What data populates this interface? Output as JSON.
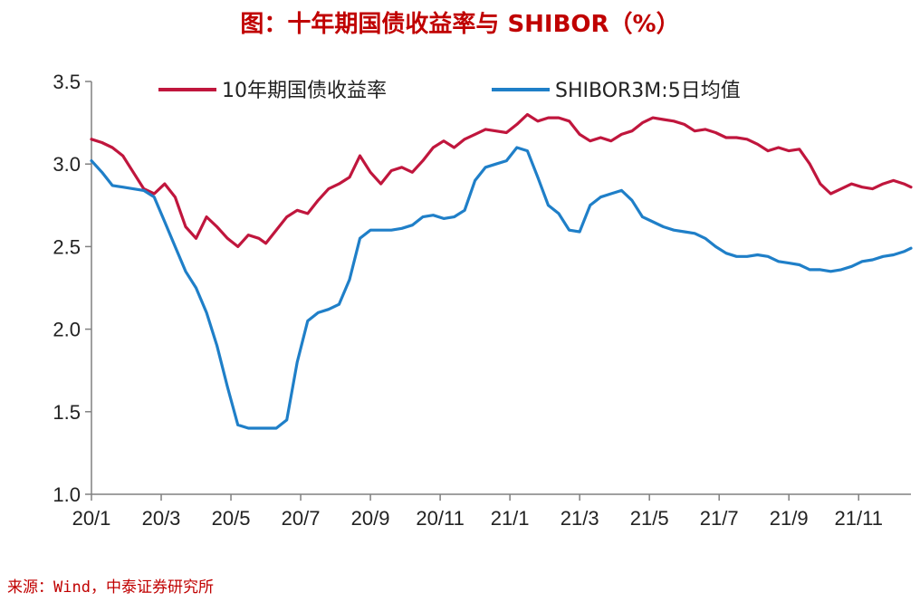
{
  "title": "图：十年期国债收益率与 SHIBOR（%）",
  "source": "来源：Wind，中泰证券研究所",
  "colors": {
    "title": "#C00000",
    "series1": "#C0163D",
    "series2": "#1F7FC8",
    "axis": "#808080"
  },
  "chart_data": {
    "type": "line",
    "title": "图：十年期国债收益率与 SHIBOR（%）",
    "xlabel": "",
    "ylabel": "",
    "x_ticks": [
      "20/1",
      "20/3",
      "20/5",
      "20/7",
      "20/9",
      "20/11",
      "21/1",
      "21/3",
      "21/5",
      "21/7",
      "21/9",
      "21/11"
    ],
    "x_range": [
      0,
      23.5
    ],
    "ylim": [
      1.0,
      3.5
    ],
    "y_ticks": [
      "1.0",
      "1.5",
      "2.0",
      "2.5",
      "3.0",
      "3.5"
    ],
    "grid": false,
    "legend_position": "top",
    "series": [
      {
        "name": "10年期国债收益率",
        "x": [
          0,
          0.3,
          0.6,
          0.9,
          1.2,
          1.5,
          1.8,
          2.1,
          2.4,
          2.7,
          3.0,
          3.3,
          3.6,
          3.9,
          4.2,
          4.5,
          4.8,
          5.0,
          5.3,
          5.6,
          5.9,
          6.2,
          6.5,
          6.8,
          7.1,
          7.4,
          7.7,
          8.0,
          8.3,
          8.6,
          8.9,
          9.2,
          9.5,
          9.8,
          10.1,
          10.4,
          10.7,
          11.0,
          11.3,
          11.6,
          11.9,
          12.2,
          12.5,
          12.8,
          13.1,
          13.4,
          13.7,
          14.0,
          14.3,
          14.6,
          14.9,
          15.2,
          15.5,
          15.8,
          16.1,
          16.4,
          16.7,
          17.0,
          17.3,
          17.6,
          17.9,
          18.2,
          18.5,
          18.8,
          19.1,
          19.4,
          19.7,
          20.0,
          20.3,
          20.6,
          20.9,
          21.2,
          21.5,
          21.8,
          22.1,
          22.4,
          22.7,
          23.0,
          23.3,
          23.5
        ],
        "y": [
          3.15,
          3.13,
          3.1,
          3.05,
          2.95,
          2.85,
          2.82,
          2.88,
          2.8,
          2.62,
          2.55,
          2.68,
          2.62,
          2.55,
          2.5,
          2.57,
          2.55,
          2.52,
          2.6,
          2.68,
          2.72,
          2.7,
          2.78,
          2.85,
          2.88,
          2.92,
          3.05,
          2.95,
          2.88,
          2.96,
          2.98,
          2.95,
          3.02,
          3.1,
          3.14,
          3.1,
          3.15,
          3.18,
          3.21,
          3.2,
          3.19,
          3.24,
          3.3,
          3.26,
          3.28,
          3.28,
          3.26,
          3.18,
          3.14,
          3.16,
          3.14,
          3.18,
          3.2,
          3.25,
          3.28,
          3.27,
          3.26,
          3.24,
          3.2,
          3.21,
          3.19,
          3.16,
          3.16,
          3.15,
          3.12,
          3.08,
          3.1,
          3.08,
          3.09,
          3.0,
          2.88,
          2.82,
          2.85,
          2.88,
          2.86,
          2.85,
          2.88,
          2.9,
          2.88,
          2.86
        ]
      },
      {
        "name": "SHIBOR3M:5日均值",
        "x": [
          0,
          0.3,
          0.6,
          0.9,
          1.2,
          1.5,
          1.8,
          2.1,
          2.4,
          2.7,
          3.0,
          3.3,
          3.6,
          3.9,
          4.2,
          4.5,
          4.8,
          5.0,
          5.3,
          5.6,
          5.9,
          6.2,
          6.5,
          6.8,
          7.1,
          7.4,
          7.7,
          8.0,
          8.3,
          8.6,
          8.9,
          9.2,
          9.5,
          9.8,
          10.1,
          10.4,
          10.7,
          11.0,
          11.3,
          11.6,
          11.9,
          12.2,
          12.5,
          12.8,
          13.1,
          13.4,
          13.7,
          14.0,
          14.3,
          14.6,
          14.9,
          15.2,
          15.5,
          15.8,
          16.1,
          16.4,
          16.7,
          17.0,
          17.3,
          17.6,
          17.9,
          18.2,
          18.5,
          18.8,
          19.1,
          19.4,
          19.7,
          20.0,
          20.3,
          20.6,
          20.9,
          21.2,
          21.5,
          21.8,
          22.1,
          22.4,
          22.7,
          23.0,
          23.3,
          23.5
        ],
        "y": [
          3.02,
          2.95,
          2.87,
          2.86,
          2.85,
          2.84,
          2.8,
          2.65,
          2.5,
          2.35,
          2.25,
          2.1,
          1.9,
          1.65,
          1.42,
          1.4,
          1.4,
          1.4,
          1.4,
          1.45,
          1.8,
          2.05,
          2.1,
          2.12,
          2.15,
          2.3,
          2.55,
          2.6,
          2.6,
          2.6,
          2.61,
          2.63,
          2.68,
          2.69,
          2.67,
          2.68,
          2.72,
          2.9,
          2.98,
          3.0,
          3.02,
          3.1,
          3.08,
          2.92,
          2.75,
          2.7,
          2.6,
          2.59,
          2.75,
          2.8,
          2.82,
          2.84,
          2.78,
          2.68,
          2.65,
          2.62,
          2.6,
          2.59,
          2.58,
          2.55,
          2.5,
          2.46,
          2.44,
          2.44,
          2.45,
          2.44,
          2.41,
          2.4,
          2.39,
          2.36,
          2.36,
          2.35,
          2.36,
          2.38,
          2.41,
          2.42,
          2.44,
          2.45,
          2.47,
          2.49
        ]
      }
    ]
  }
}
